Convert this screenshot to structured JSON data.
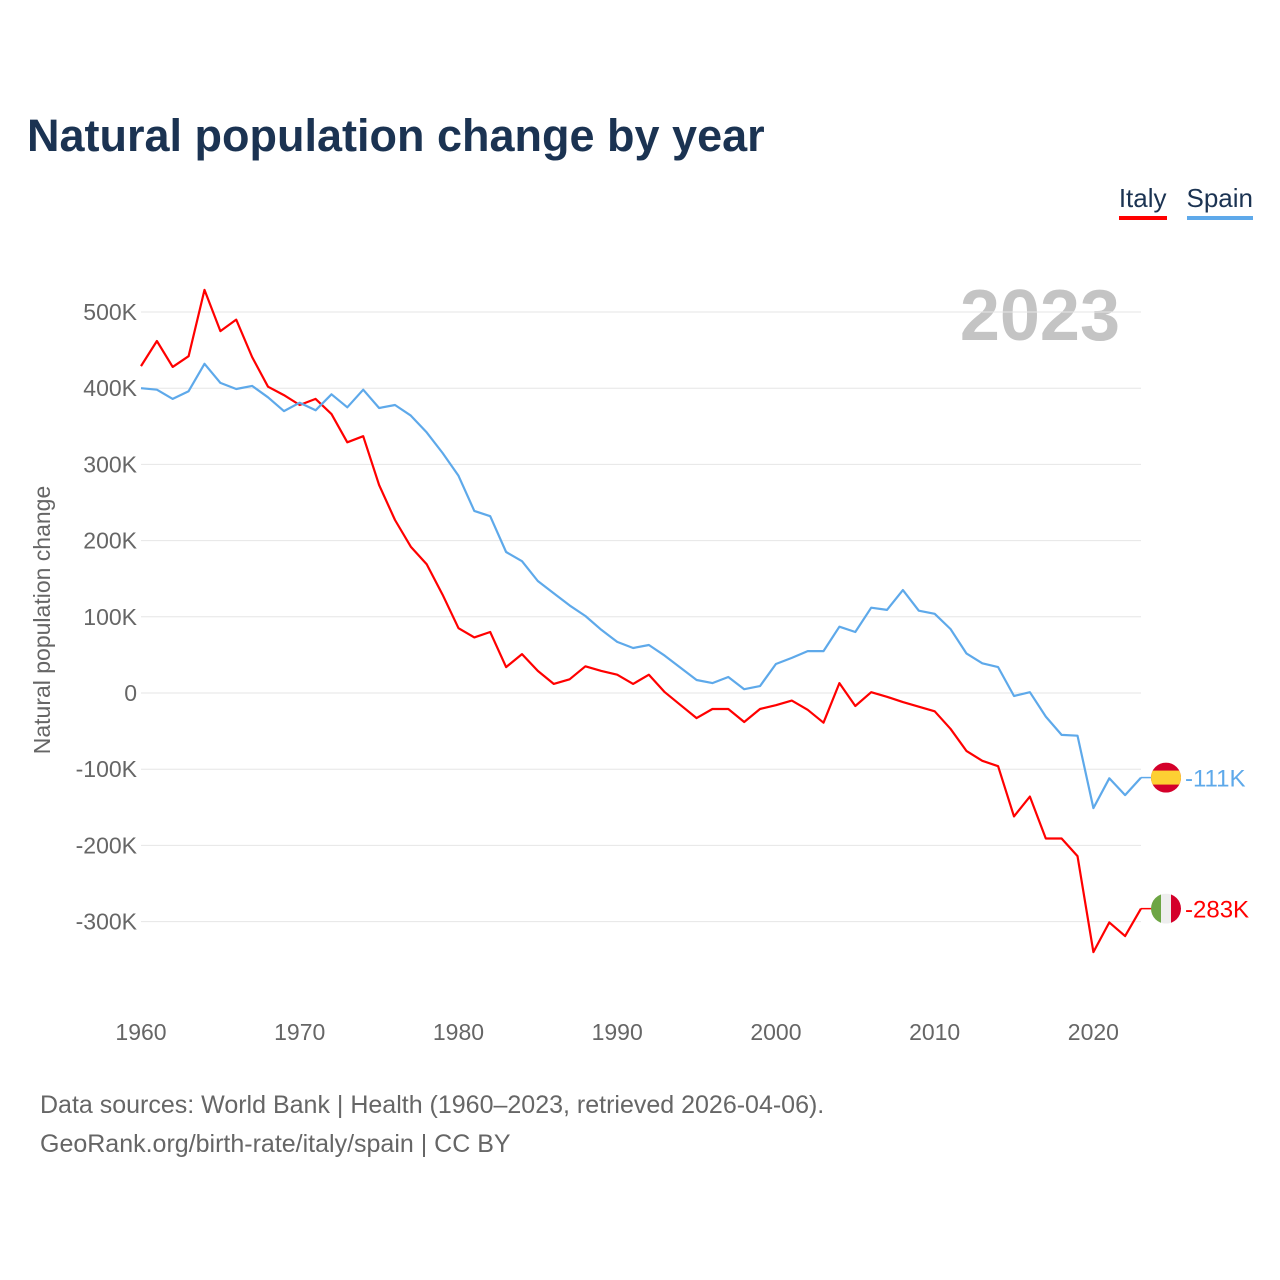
{
  "chart_data": {
    "type": "line",
    "title": "Natural population change by year",
    "xlabel": "",
    "ylabel": "Natural population change",
    "year_label": "2023",
    "xlim": [
      1960,
      2023
    ],
    "ylim": [
      -400000,
      530000
    ],
    "x_ticks": [
      1960,
      1970,
      1980,
      1990,
      2000,
      2010,
      2020
    ],
    "y_ticks": [
      {
        "v": 500000,
        "label": "500K"
      },
      {
        "v": 400000,
        "label": "400K"
      },
      {
        "v": 300000,
        "label": "300K"
      },
      {
        "v": 200000,
        "label": "200K"
      },
      {
        "v": 100000,
        "label": "100K"
      },
      {
        "v": 0,
        "label": "0"
      },
      {
        "v": -100000,
        "label": "-100K"
      },
      {
        "v": -200000,
        "label": "-200K"
      },
      {
        "v": -300000,
        "label": "-300K"
      }
    ],
    "grid": true,
    "legend_position": "top-right",
    "x_start": 1960,
    "series": [
      {
        "name": "Italy",
        "color": "#ff0000",
        "end_label": "-283K",
        "flag": "italy-flag",
        "values": [
          429,
          462,
          428,
          442,
          529,
          475,
          490,
          441,
          402,
          391,
          378,
          386,
          366,
          329,
          337,
          273,
          227,
          192,
          169,
          129,
          85,
          73,
          80,
          34,
          51,
          29,
          12,
          18,
          35,
          29,
          24,
          12,
          24,
          1,
          -16,
          -33,
          -21,
          -21,
          -38,
          -21,
          -16,
          -10,
          -22,
          -39,
          13,
          -17,
          1,
          -5,
          -12,
          -18,
          -24,
          -47,
          -76,
          -89,
          -96,
          -162,
          -136,
          -191,
          -191,
          -214,
          -340,
          -301,
          -319,
          -283
        ]
      },
      {
        "name": "Spain",
        "color": "#5ea9ea",
        "end_label": "-111K",
        "flag": "spain-flag",
        "values": [
          400,
          398,
          386,
          396,
          432,
          407,
          399,
          403,
          388,
          370,
          381,
          371,
          392,
          375,
          398,
          374,
          378,
          364,
          342,
          315,
          285,
          239,
          232,
          185,
          173,
          147,
          131,
          115,
          101,
          83,
          67,
          59,
          63,
          49,
          33,
          17,
          13,
          21,
          5,
          9,
          38,
          46,
          55,
          55,
          87,
          80,
          112,
          109,
          135,
          108,
          104,
          84,
          52,
          39,
          34,
          -4,
          1,
          -31,
          -55,
          -56,
          -151,
          -112,
          -134,
          -111
        ]
      }
    ],
    "value_unit": "thousands"
  },
  "footer": {
    "line1": "Data sources: World Bank | Health (1960–2023, retrieved 2026-04-06).",
    "line2": "GeoRank.org/birth-rate/italy/spain | CC BY"
  }
}
